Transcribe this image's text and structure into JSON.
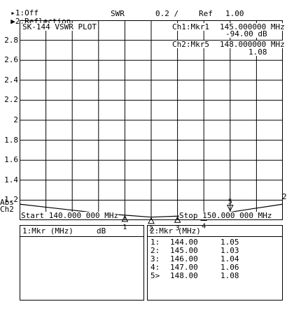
{
  "header": {
    "trace1": "1:Off",
    "trace2": "2:Reflection",
    "format": "SWR",
    "scale": "0.2 /",
    "ref_label": "Ref",
    "ref_value": "1.00"
  },
  "plot": {
    "title": "SK-144 VSWR PLOT",
    "ch1_marker": "Ch1:Mkr1",
    "ch1_freq": "145.000000 MHz",
    "ch1_value": "-94.00 dB",
    "ch2_marker": "Ch2:Mkr5",
    "ch2_freq": "148.000000 MHz",
    "ch2_value": "1.08",
    "start": "Start 140.000 000 MHz",
    "stop": "Stop 150.000 000 MHz",
    "abs_label": "Abs",
    "ch2_label": "Ch2",
    "trace_end_label": "2"
  },
  "chart_data": {
    "type": "line",
    "xlim": [
      140,
      150
    ],
    "ylim": [
      1.0,
      3.0
    ],
    "yticks": [
      "2.8",
      "2.6",
      "2.4",
      "2.2",
      "2",
      "1.8",
      "1.6",
      "1.4",
      "1.2"
    ],
    "grid": true,
    "series": [
      {
        "x": [
          140,
          141,
          142,
          143,
          144,
          145,
          146,
          147,
          148,
          149,
          150
        ],
        "y": [
          1.16,
          1.13,
          1.1,
          1.07,
          1.05,
          1.03,
          1.04,
          1.06,
          1.08,
          1.12,
          1.16
        ]
      }
    ],
    "markers": [
      {
        "label": "1",
        "x": 144.0
      },
      {
        "label": "2",
        "x": 145.0
      },
      {
        "label": "3",
        "x": 146.0
      },
      {
        "label": "4",
        "x": 147.0
      },
      {
        "label": "5",
        "x": 148.0
      }
    ]
  },
  "table_left": {
    "header": "1:Mkr (MHz)     dB"
  },
  "table_right": {
    "header": "2:Mkr (MHz)",
    "rows": [
      {
        "id": "1:",
        "freq": "144.00",
        "value": "1.05"
      },
      {
        "id": "2:",
        "freq": "145.00",
        "value": "1.03"
      },
      {
        "id": "3:",
        "freq": "146.00",
        "value": "1.04"
      },
      {
        "id": "4:",
        "freq": "147.00",
        "value": "1.06"
      },
      {
        "id": "5>",
        "freq": "148.00",
        "value": "1.08"
      }
    ]
  }
}
